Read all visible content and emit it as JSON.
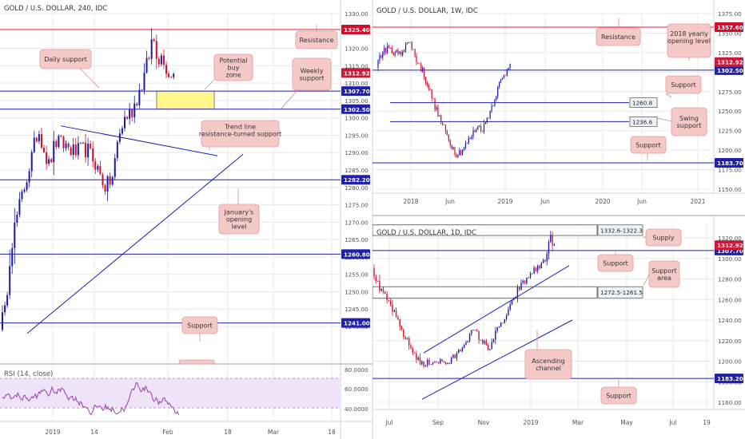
{
  "colors": {
    "up": "#1a1aa8",
    "down": "#d0102a",
    "support_line": "#1f1fb0",
    "resistance_line": "#e0203c",
    "label_bg": "#f6c9c9",
    "label_border": "#e29c9c",
    "zone_fill": "#fff68c",
    "rsi_line": "#9a3fb0",
    "rsi_fill": "#efe3f7",
    "price_tag_blue": "#1f1fb0",
    "price_tag_red": "#d0102a",
    "price_tag_last": "#c81a3a",
    "grid": "#e6e9ee",
    "axis_text": "#555555"
  },
  "chart_data": [
    {
      "type": "candlestick",
      "title": "GOLD / U.S. DOLLAR, 240, IDC",
      "x_ticks": [
        "2019",
        "14",
        "Feb",
        "18",
        "Mar",
        "18"
      ],
      "y_ticks": [
        "1330.00",
        "1325.00",
        "1320.00",
        "1315.00",
        "1310.00",
        "1305.00",
        "1300.00",
        "1295.00",
        "1290.00",
        "1285.00",
        "1280.00",
        "1275.00",
        "1270.00",
        "1265.00",
        "1260.00",
        "1255.00",
        "1250.00",
        "1245.00",
        "1240.00"
      ],
      "ylim": [
        1237.7,
        1331.6
      ],
      "levels": [
        {
          "value": 1325.4,
          "label": "1325.40",
          "color": "resistance"
        },
        {
          "value": 1307.7,
          "label": "1307.70",
          "color": "support"
        },
        {
          "value": 1302.5,
          "label": "1302.50",
          "color": "support"
        },
        {
          "value": 1282.2,
          "label": "1282.20",
          "color": "support"
        },
        {
          "value": 1260.8,
          "label": "1260.80",
          "color": "support"
        },
        {
          "value": 1241.0,
          "label": "1241.00",
          "color": "support"
        }
      ],
      "last_price": "1312.92",
      "zone": {
        "from": 1302.5,
        "to": 1307.7
      },
      "trend_lines": [
        {
          "from": [
            1297.7,
            "Jan 10"
          ],
          "to": [
            1289.1,
            "Feb 11"
          ]
        },
        {
          "from": [
            1238.0,
            "Jan 1"
          ],
          "to": [
            1289.5,
            "Feb 10"
          ]
        }
      ],
      "annotations": [
        "Resistance",
        "Daily support",
        "Potential buy zone",
        "Weekly support",
        "Trend line resistance-turned support",
        "January's opening level",
        "Support"
      ],
      "rsi": {
        "label": "RSI (14, close)",
        "y_ticks": [
          "80.0000",
          "60.0000",
          "40.0000"
        ],
        "bands": [
          70,
          30
        ]
      }
    },
    {
      "type": "candlestick",
      "title": "GOLD / U.S. DOLLAR, 1W, IDC",
      "x_ticks": [
        "2018",
        "Jun",
        "2019",
        "Jun",
        "2020",
        "Jun",
        "2021"
      ],
      "y_ticks": [
        "1375.00",
        "1350.00",
        "1325.00",
        "1300.00",
        "1275.00",
        "1250.00",
        "1225.00",
        "1200.00",
        "1175.00",
        "1150.00"
      ],
      "ylim": [
        1145.5,
        1379.2
      ],
      "levels": [
        {
          "value": 1357.6,
          "label": "1357.60",
          "color": "resistance"
        },
        {
          "value": 1302.5,
          "label": "1302.50",
          "color": "support"
        },
        {
          "value": 1260.8,
          "label": "1260.8",
          "color": "plain"
        },
        {
          "value": 1236.6,
          "label": "1236.6",
          "color": "plain"
        },
        {
          "value": 1183.7,
          "label": "1183.70",
          "color": "support"
        }
      ],
      "last_price": "1312.92",
      "annotations": [
        "Resistance",
        "2018 yearly opening level",
        "Support",
        "Swing support",
        "Support"
      ]
    },
    {
      "type": "candlestick",
      "title": "GOLD / U.S. DOLLAR, 1D, IDC",
      "x_ticks": [
        "Jul",
        "Sep",
        "Nov",
        "2019",
        "Mar",
        "May",
        "Jul",
        "19"
      ],
      "y_ticks": [
        "1320.00",
        "1300.00",
        "1280.00",
        "1260.00",
        "1240.00",
        "1220.00",
        "1200.00",
        "1180.00",
        "1160.00"
      ],
      "ylim": [
        1155.0,
        1327.5
      ],
      "levels": [
        {
          "value": 1307.7,
          "label": "1307.70",
          "color": "support"
        },
        {
          "value": 1183.2,
          "label": "1183.20",
          "color": "support"
        }
      ],
      "last_price": "1312.92",
      "zones": [
        {
          "label": "1332.6-1322.3",
          "from": 1322.3,
          "to": 1332.6
        },
        {
          "label": "1272.5-1261.5",
          "from": 1261.5,
          "to": 1272.5
        }
      ],
      "channel": {
        "upper": [
          [
            1208,
            "Aug 20"
          ],
          [
            1293,
            "Feb 20"
          ]
        ],
        "lower": [
          [
            1163,
            "Aug 20"
          ],
          [
            1240,
            "Feb 20"
          ]
        ]
      },
      "annotations": [
        "Supply",
        "Support",
        "Support area",
        "Ascending channel",
        "Support"
      ]
    }
  ]
}
